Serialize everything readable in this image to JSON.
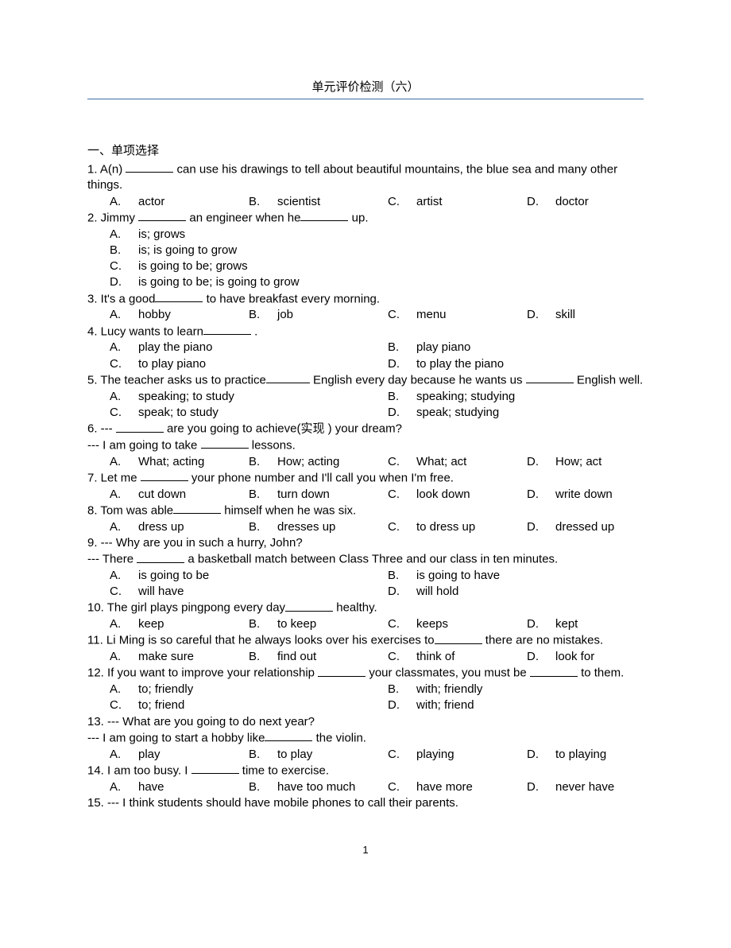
{
  "title": "单元评价检测（六）",
  "pageNumber": "1",
  "section": {
    "heading": "一、单项选择",
    "questions": [
      {
        "num": " 1.",
        "stem_parts": [
          {
            "t": " A(n) "
          },
          {
            "b": 60
          },
          {
            "t": " can use his drawings to tell about beautiful mountains, the blue sea and many other things."
          }
        ],
        "cols": 4,
        "options": [
          "actor",
          "scientist",
          "artist",
          "doctor"
        ]
      },
      {
        "num": " 2.",
        "stem_parts": [
          {
            "t": " Jimmy "
          },
          {
            "b": 60
          },
          {
            "t": " an engineer when he"
          },
          {
            "b": 60
          },
          {
            "t": "  up."
          }
        ],
        "cols": 1,
        "options": [
          "is; grows",
          "is; is going to grow",
          "is going to be; grows",
          "is going to be; is going to grow"
        ]
      },
      {
        "num": " 3.",
        "stem_parts": [
          {
            "t": " It's a good"
          },
          {
            "b": 60
          },
          {
            "t": "  to have breakfast every morning."
          }
        ],
        "cols": 4,
        "options": [
          "hobby",
          "job",
          "menu",
          "skill"
        ]
      },
      {
        "num": " 4.",
        "stem_parts": [
          {
            "t": " Lucy wants to learn"
          },
          {
            "b": 60
          },
          {
            "t": " ."
          }
        ],
        "cols": 2,
        "options": [
          "play the piano",
          "play piano",
          "to play piano",
          "to play the piano"
        ]
      },
      {
        "num": " 5.",
        "stem_parts": [
          {
            "t": " The teacher asks us to practice"
          },
          {
            "b": 55
          },
          {
            "t": "   English every day because he wants us "
          },
          {
            "b": 60
          },
          {
            "t": " English well."
          }
        ],
        "cols": 2,
        "options": [
          "speaking; to study",
          "speaking; studying",
          "speak; to study",
          "speak; studying"
        ]
      },
      {
        "num": " 6.",
        "stem_parts": [
          {
            "t": " --- "
          },
          {
            "b": 60
          },
          {
            "t": " are you going to achieve(实现 ) your dream?"
          }
        ],
        "followup_parts": [
          {
            "t": "--- I am going to take "
          },
          {
            "b": 60
          },
          {
            "t": " lessons."
          }
        ],
        "cols": 4,
        "options": [
          "What; acting",
          "How; acting",
          "What; act",
          "How; act"
        ]
      },
      {
        "num": " 7.",
        "stem_parts": [
          {
            "t": " Let me "
          },
          {
            "b": 60
          },
          {
            "t": " your phone number and I'll call you when I'm free."
          }
        ],
        "cols": 4,
        "options": [
          "cut down",
          "turn down",
          "look down",
          "write down"
        ]
      },
      {
        "num": " 8.",
        "stem_parts": [
          {
            "t": " Tom was able"
          },
          {
            "b": 60
          },
          {
            "t": "  himself when he was six."
          }
        ],
        "cols": 4,
        "options": [
          "dress up",
          "dresses up",
          "to dress up",
          "dressed up"
        ]
      },
      {
        "num": " 9.",
        "stem_parts": [
          {
            "t": " --- Why are you in such a hurry, John?"
          }
        ],
        "followup_parts": [
          {
            "t": "--- There "
          },
          {
            "b": 60
          },
          {
            "t": " a basketball match between Class Three and our class in ten minutes."
          }
        ],
        "cols": 2,
        "options": [
          "is going to be",
          "is going to have",
          "will have",
          "will hold"
        ]
      },
      {
        "num": "10.",
        "stem_parts": [
          {
            "t": " The girl plays pingpong every day"
          },
          {
            "b": 60
          },
          {
            "t": "  healthy."
          }
        ],
        "cols": 4,
        "options": [
          "keep",
          "to keep",
          "keeps",
          "kept"
        ]
      },
      {
        "num": "11.",
        "stem_parts": [
          {
            "t": " Li Ming is so careful that he always looks over his exercises to"
          },
          {
            "b": 60
          },
          {
            "t": "   there are no mistakes."
          }
        ],
        "cols": 4,
        "options": [
          "make sure",
          "find out",
          "think of",
          "look for"
        ]
      },
      {
        "num": "12.",
        "stem_parts": [
          {
            "t": " If you want to improve your relationship "
          },
          {
            "b": 60
          },
          {
            "t": " your classmates, you must be "
          },
          {
            "b": 60
          },
          {
            "t": " to them."
          }
        ],
        "cols": 2,
        "options": [
          "to; friendly",
          "with; friendly",
          "to; friend",
          "with; friend"
        ]
      },
      {
        "num": "13.",
        "stem_parts": [
          {
            "t": " --- What are you going to do next year?"
          }
        ],
        "followup_parts": [
          {
            "t": "--- I am going to start a hobby like"
          },
          {
            "b": 60
          },
          {
            "t": "  the violin."
          }
        ],
        "cols": 4,
        "options": [
          "play",
          "to play",
          "playing",
          "to playing"
        ]
      },
      {
        "num": "14.",
        "stem_parts": [
          {
            "t": " I am too busy. I "
          },
          {
            "b": 60
          },
          {
            "t": " time to exercise."
          }
        ],
        "cols": 4,
        "options": [
          "have",
          "have too much",
          "have more",
          "never have"
        ]
      },
      {
        "num": "15.",
        "stem_parts": [
          {
            "t": " --- I think students should have mobile phones to call their parents."
          }
        ],
        "cols": 0,
        "options": []
      }
    ]
  },
  "letters": [
    "A.",
    "B.",
    "C.",
    "D."
  ]
}
